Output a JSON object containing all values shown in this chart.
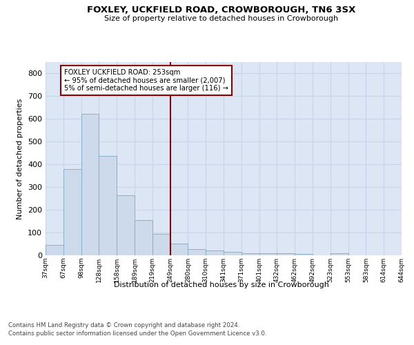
{
  "title1": "FOXLEY, UCKFIELD ROAD, CROWBOROUGH, TN6 3SX",
  "title2": "Size of property relative to detached houses in Crowborough",
  "xlabel": "Distribution of detached houses by size in Crowborough",
  "ylabel": "Number of detached properties",
  "bar_values": [
    47,
    380,
    623,
    438,
    265,
    155,
    95,
    53,
    27,
    20,
    15,
    10,
    10,
    10,
    5,
    0,
    8,
    0,
    0,
    0
  ],
  "bin_labels": [
    "37sqm",
    "67sqm",
    "98sqm",
    "128sqm",
    "158sqm",
    "189sqm",
    "219sqm",
    "249sqm",
    "280sqm",
    "310sqm",
    "341sqm",
    "371sqm",
    "401sqm",
    "432sqm",
    "462sqm",
    "492sqm",
    "523sqm",
    "553sqm",
    "583sqm",
    "614sqm",
    "644sqm"
  ],
  "bar_color": "#ccdaeb",
  "bar_edge_color": "#7aaac8",
  "marker_line_color": "#8b0000",
  "annotation_line1": "FOXLEY UCKFIELD ROAD: 253sqm",
  "annotation_line2": "← 95% of detached houses are smaller (2,007)",
  "annotation_line3": "5% of semi-detached houses are larger (116) →",
  "annotation_box_color": "#ffffff",
  "annotation_box_edge": "#8b0000",
  "ylim": [
    0,
    850
  ],
  "yticks": [
    0,
    100,
    200,
    300,
    400,
    500,
    600,
    700,
    800
  ],
  "grid_color": "#c8d4e8",
  "background_color": "#dce6f5",
  "footer1": "Contains HM Land Registry data © Crown copyright and database right 2024.",
  "footer2": "Contains public sector information licensed under the Open Government Licence v3.0."
}
